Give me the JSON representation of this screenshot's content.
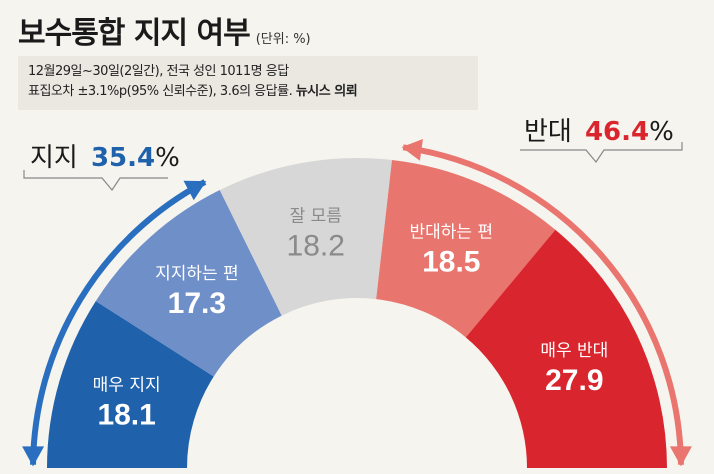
{
  "header": {
    "title": "보수통합 지지 여부",
    "unit": "(단위: %)"
  },
  "note": {
    "line1": "12월29일~30일(2일간), 전국 성인 1011명 응답",
    "line2_prefix": "표집오차 ±3.1%p(95% 신뢰수준), 3.6의 응답률.",
    "line2_source": "뉴시스 의뢰"
  },
  "callouts": {
    "support": {
      "label": "지지",
      "value": "35.4",
      "unit": "%",
      "color": "#1f62ab"
    },
    "oppose": {
      "label": "반대",
      "value": "46.4",
      "unit": "%",
      "color": "#d9262e"
    }
  },
  "colors": {
    "strong_support": "#1f62ab",
    "support": "#6f8fc9",
    "unsure": "#d7d7d7",
    "oppose": "#e8766f",
    "strong_oppose": "#d9262e",
    "arrow_left": "#2a6fbf",
    "arrow_right": "#e9756e"
  },
  "chart_data": {
    "type": "pie",
    "subtype": "semicircle-donut",
    "title": "보수통합 지지 여부",
    "unit": "%",
    "slices": [
      {
        "label": "매우 지지",
        "value": 18.1
      },
      {
        "label": "지지하는 편",
        "value": 17.3
      },
      {
        "label": "잘 모름",
        "value": 18.2
      },
      {
        "label": "반대하는 편",
        "value": 18.5
      },
      {
        "label": "매우 반대",
        "value": 27.9
      }
    ],
    "groups": [
      {
        "label": "지지",
        "value": 35.4,
        "members": [
          "매우 지지",
          "지지하는 편"
        ]
      },
      {
        "label": "반대",
        "value": 46.4,
        "members": [
          "반대하는 편",
          "매우 반대"
        ]
      }
    ]
  }
}
